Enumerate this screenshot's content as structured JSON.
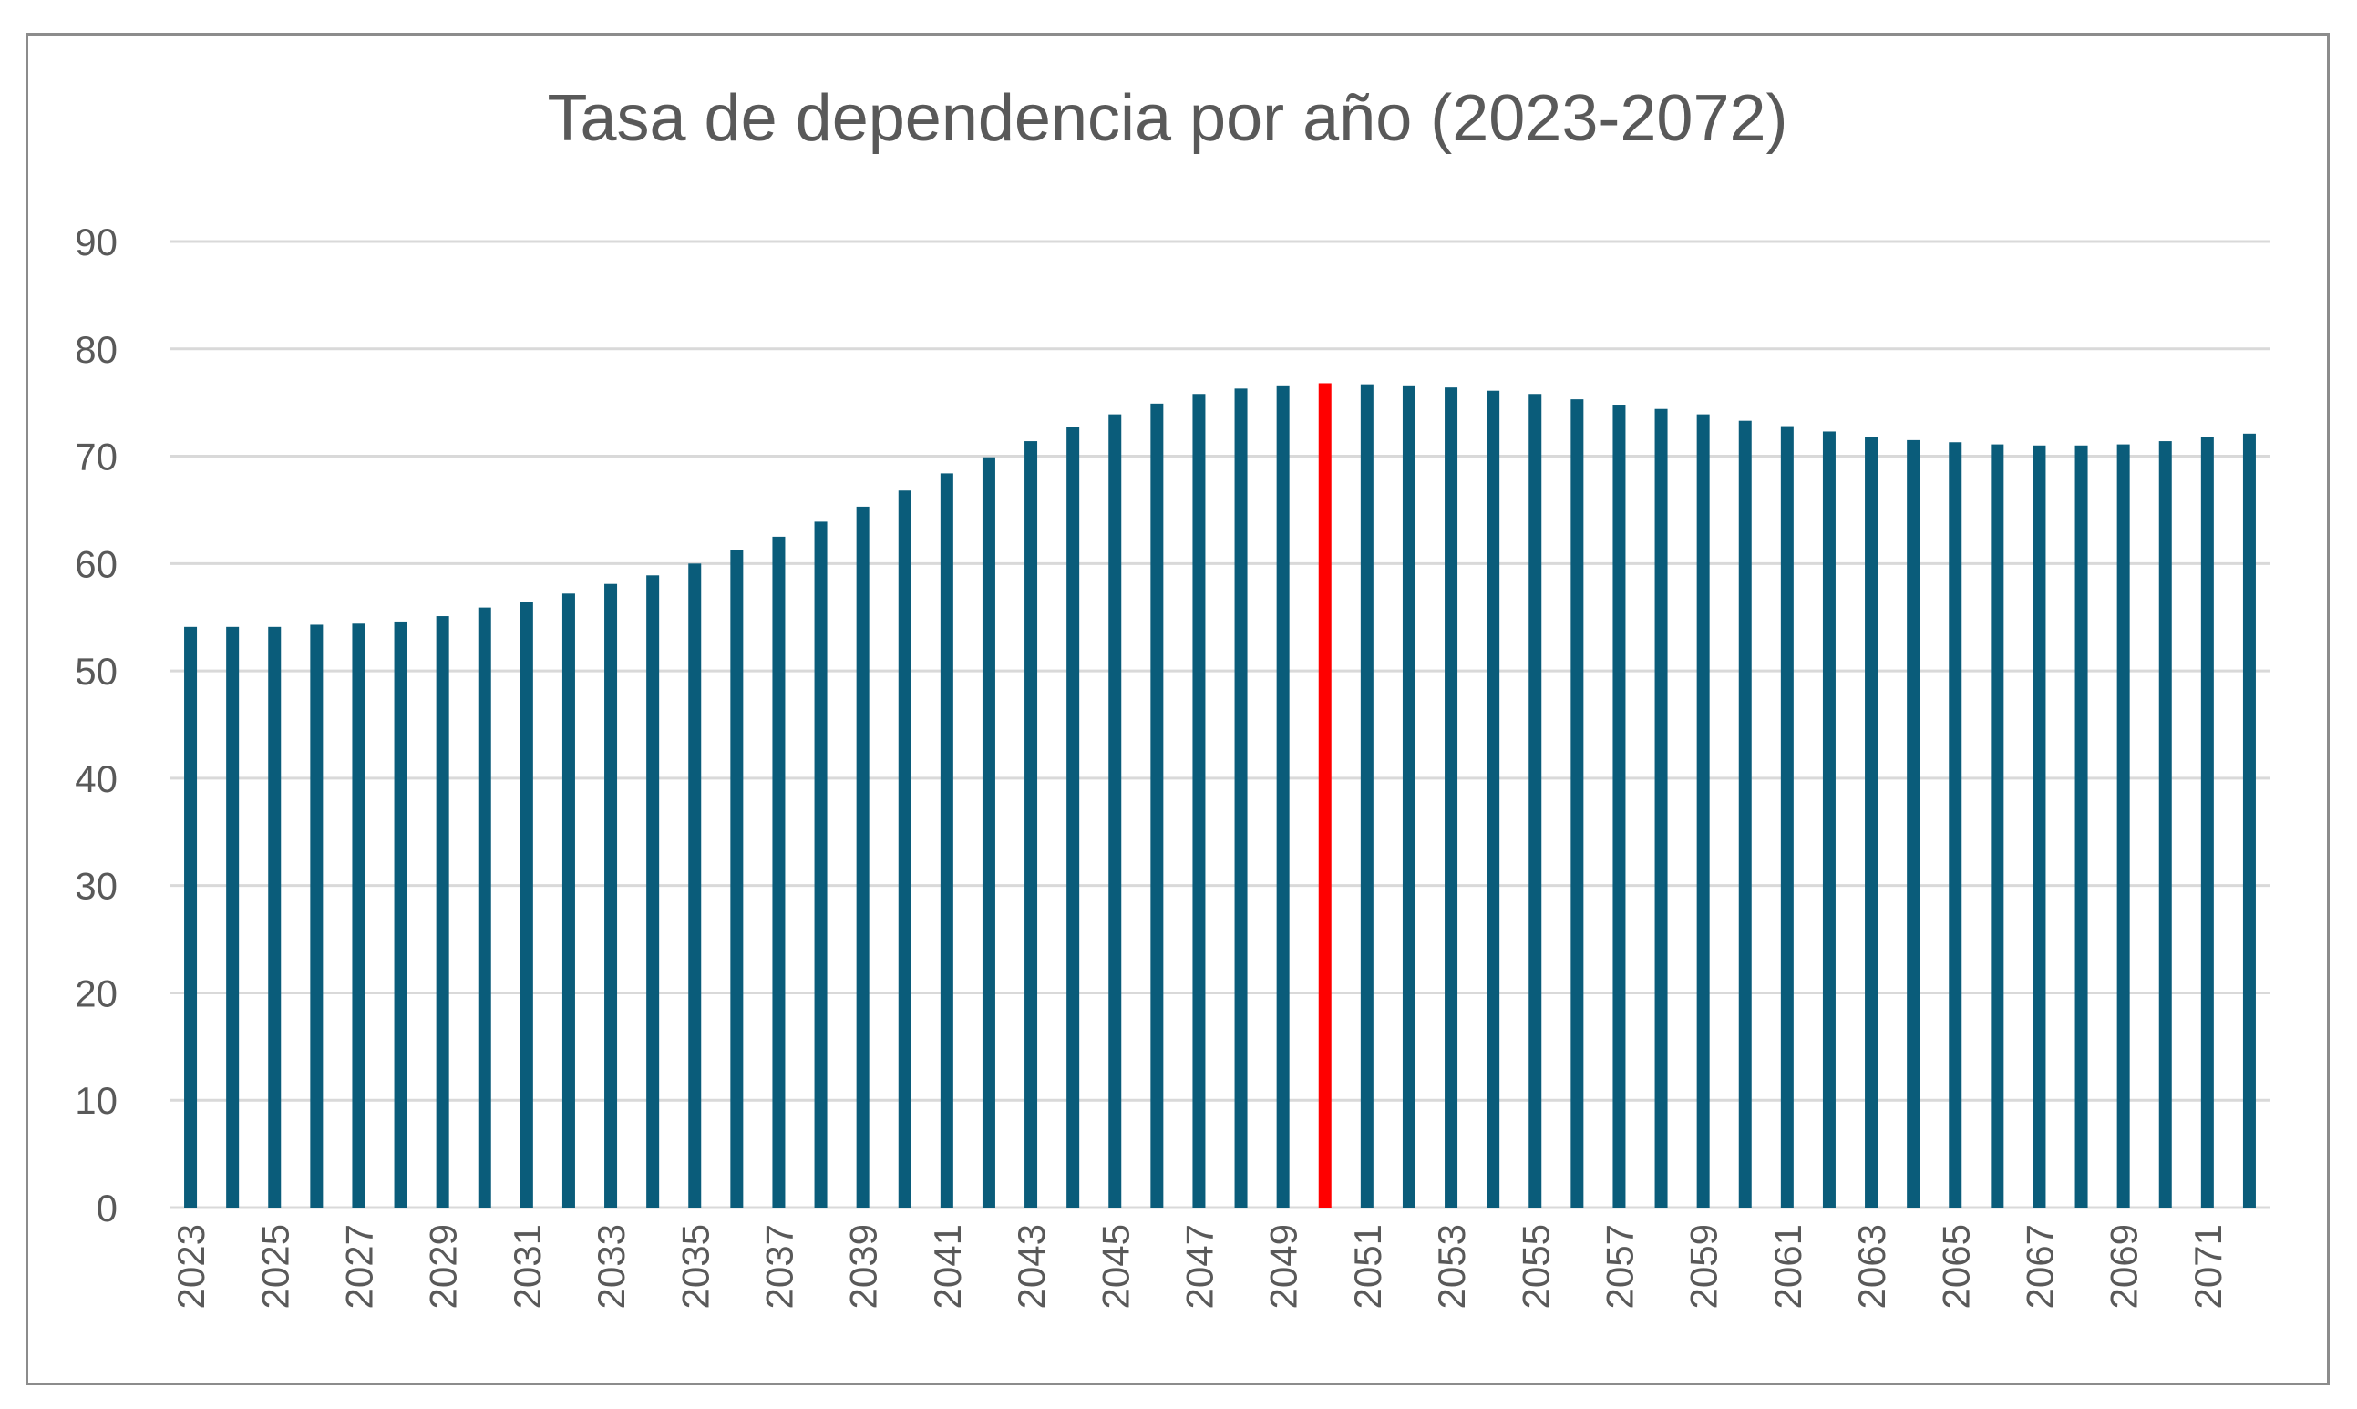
{
  "chart_data": {
    "type": "bar",
    "title": "Tasa de dependencia por año (2023-2072)",
    "xlabel": "",
    "ylabel": "",
    "ylim": [
      0,
      90
    ],
    "yticks": [
      0,
      10,
      20,
      30,
      40,
      50,
      60,
      70,
      80,
      90
    ],
    "grid": true,
    "legend": "none",
    "categories": [
      "2023",
      "2024",
      "2025",
      "2026",
      "2027",
      "2028",
      "2029",
      "2030",
      "2031",
      "2032",
      "2033",
      "2034",
      "2035",
      "2036",
      "2037",
      "2038",
      "2039",
      "2040",
      "2041",
      "2042",
      "2043",
      "2044",
      "2045",
      "2046",
      "2047",
      "2048",
      "2049",
      "2050",
      "2051",
      "2052",
      "2053",
      "2054",
      "2055",
      "2056",
      "2057",
      "2058",
      "2059",
      "2060",
      "2061",
      "2062",
      "2063",
      "2064",
      "2065",
      "2066",
      "2067",
      "2068",
      "2069",
      "2070",
      "2071",
      "2072"
    ],
    "tick_labels": [
      "2023",
      "2025",
      "2027",
      "2029",
      "2031",
      "2033",
      "2035",
      "2037",
      "2039",
      "2041",
      "2043",
      "2045",
      "2047",
      "2049",
      "2051",
      "2053",
      "2055",
      "2057",
      "2059",
      "2061",
      "2063",
      "2065",
      "2067",
      "2069",
      "2071"
    ],
    "values": [
      54.1,
      54.1,
      54.1,
      54.3,
      54.4,
      54.6,
      55.1,
      55.9,
      56.4,
      57.2,
      58.1,
      58.9,
      60.0,
      61.3,
      62.5,
      63.9,
      65.3,
      66.8,
      68.4,
      69.9,
      71.4,
      72.7,
      73.9,
      74.9,
      75.8,
      76.3,
      76.6,
      76.8,
      76.7,
      76.6,
      76.4,
      76.1,
      75.8,
      75.3,
      74.8,
      74.4,
      73.9,
      73.3,
      72.8,
      72.3,
      71.8,
      71.5,
      71.3,
      71.1,
      71.0,
      71.0,
      71.1,
      71.4,
      71.8,
      72.1
    ],
    "colors": {
      "default": "#0a5c7a",
      "highlight": "#ff0000"
    },
    "highlight_category": "2050",
    "grid_color": "#d9d9d9",
    "axis_color": "#d9d9d9"
  }
}
